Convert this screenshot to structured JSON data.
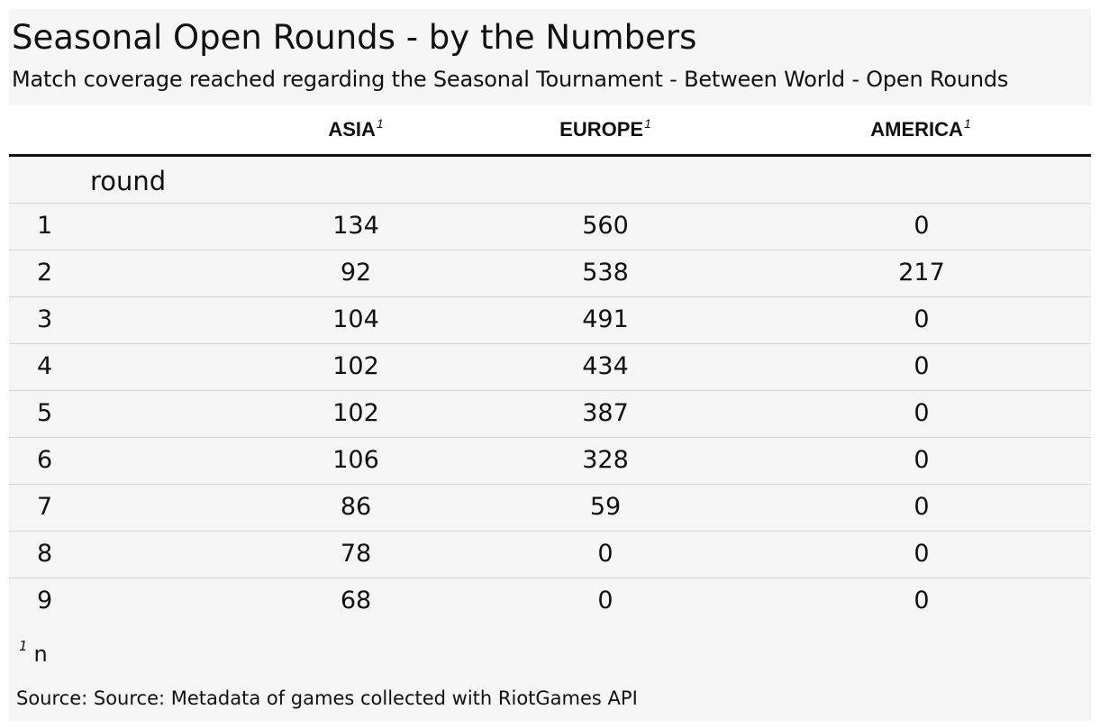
{
  "chart_data": {
    "type": "table",
    "title": "Seasonal Open Rounds - by the Numbers",
    "subtitle": "Match coverage reached regarding the Seasonal Tournament - Between World - Open Rounds",
    "group_label": "round",
    "columns": [
      {
        "label": "ASIA",
        "footnote_marker": "1"
      },
      {
        "label": "EUROPE",
        "footnote_marker": "1"
      },
      {
        "label": "AMERICA",
        "footnote_marker": "1"
      }
    ],
    "rows": [
      {
        "round": "1",
        "values": [
          "134",
          "560",
          "0"
        ]
      },
      {
        "round": "2",
        "values": [
          "92",
          "538",
          "217"
        ]
      },
      {
        "round": "3",
        "values": [
          "104",
          "491",
          "0"
        ]
      },
      {
        "round": "4",
        "values": [
          "102",
          "434",
          "0"
        ]
      },
      {
        "round": "5",
        "values": [
          "102",
          "387",
          "0"
        ]
      },
      {
        "round": "6",
        "values": [
          "106",
          "328",
          "0"
        ]
      },
      {
        "round": "7",
        "values": [
          "86",
          "59",
          "0"
        ]
      },
      {
        "round": "8",
        "values": [
          "78",
          "0",
          "0"
        ]
      },
      {
        "round": "9",
        "values": [
          "68",
          "0",
          "0"
        ]
      }
    ],
    "footnote": {
      "marker": "1",
      "text": "n"
    },
    "source": "Source: Source: Metadata of games collected with RiotGames API"
  }
}
